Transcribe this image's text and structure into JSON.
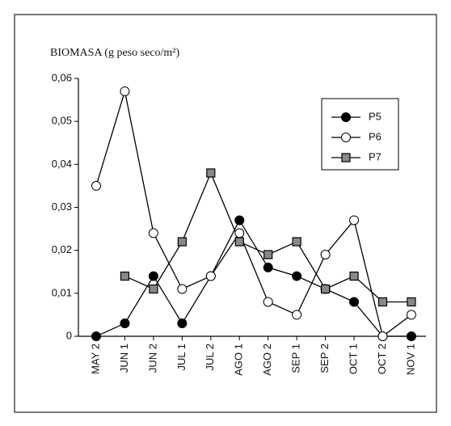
{
  "chart_data": {
    "type": "line",
    "ylabel": "BIOMASA (g peso seco/m²)",
    "categories": [
      "MAY 2",
      "JUN 1",
      "JUN 2",
      "JUL 1",
      "JUL 2",
      "AGO 1",
      "AGO 2",
      "SEP 1",
      "SEP 2",
      "OCT 1",
      "OCT 2",
      "NOV 1"
    ],
    "series": [
      {
        "name": "P5",
        "color": "#000000",
        "marker": "filled-circle",
        "values": [
          0,
          0.003,
          0.014,
          0.003,
          0.014,
          0.027,
          0.016,
          0.014,
          0.011,
          0.008,
          0,
          0
        ]
      },
      {
        "name": "P6",
        "color": "#000000",
        "marker": "open-circle",
        "values": [
          0.035,
          0.057,
          0.024,
          0.011,
          0.014,
          0.024,
          0.008,
          0.005,
          0.019,
          0.027,
          0,
          0.005
        ]
      },
      {
        "name": "P7",
        "color": "#000000",
        "marker": "square",
        "values": [
          null,
          0.014,
          0.011,
          0.022,
          0.038,
          0.022,
          0.019,
          0.022,
          0.011,
          0.014,
          0.008,
          0.008
        ]
      }
    ],
    "ylim": [
      0,
      0.06
    ],
    "yticks": [
      0,
      {
        "value": 0.01,
        "label": "0,01"
      },
      {
        "value": 0.02,
        "label": "0,02"
      },
      {
        "value": 0.03,
        "label": "0,03"
      },
      {
        "value": 0.04,
        "label": "0,04"
      },
      {
        "value": 0.05,
        "label": "0,05"
      },
      {
        "value": 0.06,
        "label": "0,06"
      }
    ],
    "legend": "upper-right",
    "grid": false
  }
}
